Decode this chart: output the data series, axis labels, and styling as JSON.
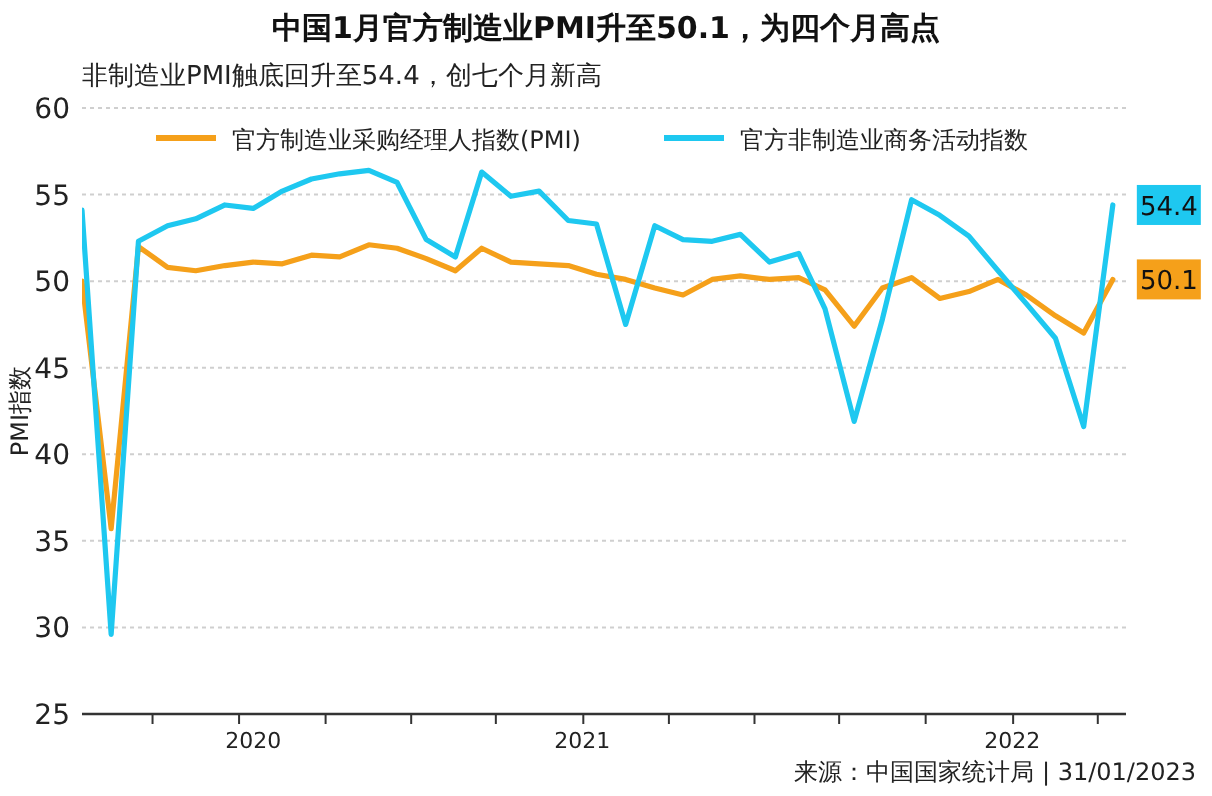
{
  "chart_data": {
    "type": "line",
    "title": "中国1月官方制造业PMI升至50.1，为四个月高点",
    "subtitle": "非制造业PMI触底回升至54.4，创七个月新高",
    "ylabel": "PMI指数",
    "annotations": [
      "来源：中国国家统计局 | 31/01/2023"
    ],
    "x": [
      "2020-01",
      "2020-02",
      "2020-03",
      "2020-04",
      "2020-05",
      "2020-06",
      "2020-07",
      "2020-08",
      "2020-09",
      "2020-10",
      "2020-11",
      "2020-12",
      "2021-01",
      "2021-02",
      "2021-03",
      "2021-04",
      "2021-05",
      "2021-06",
      "2021-07",
      "2021-08",
      "2021-09",
      "2021-10",
      "2021-11",
      "2021-12",
      "2022-01",
      "2022-02",
      "2022-03",
      "2022-04",
      "2022-05",
      "2022-06",
      "2022-07",
      "2022-08",
      "2022-09",
      "2022-10",
      "2022-11",
      "2022-12",
      "2023-01"
    ],
    "series": [
      {
        "name": "官方制造业采购经理人指数(PMI)",
        "color": "#f5a01a",
        "values": [
          50.0,
          35.7,
          52.0,
          50.8,
          50.6,
          50.9,
          51.1,
          51.0,
          51.5,
          51.4,
          52.1,
          51.9,
          51.3,
          50.6,
          51.9,
          51.1,
          51.0,
          50.9,
          50.4,
          50.1,
          49.6,
          49.2,
          50.1,
          50.3,
          50.1,
          50.2,
          49.5,
          47.4,
          49.6,
          50.2,
          49.0,
          49.4,
          50.1,
          49.2,
          48.0,
          47.0,
          50.1
        ],
        "value_labels": [
          null,
          null,
          null,
          null,
          null,
          null,
          null,
          null,
          null,
          null,
          null,
          null,
          null,
          null,
          null,
          null,
          null,
          null,
          null,
          null,
          null,
          null,
          null,
          null,
          null,
          null,
          null,
          null,
          null,
          null,
          null,
          null,
          null,
          null,
          null,
          null,
          "50.1"
        ]
      },
      {
        "name": "官方非制造业商务活动指数",
        "color": "#1ec8f0",
        "values": [
          54.1,
          29.6,
          52.3,
          53.2,
          53.6,
          54.4,
          54.2,
          55.2,
          55.9,
          56.2,
          56.4,
          55.7,
          52.4,
          51.4,
          56.3,
          54.9,
          55.2,
          53.5,
          53.3,
          47.5,
          53.2,
          52.4,
          52.3,
          52.7,
          51.1,
          51.6,
          48.4,
          41.9,
          47.8,
          54.7,
          53.8,
          52.6,
          50.6,
          48.7,
          46.7,
          41.6,
          54.4
        ],
        "value_labels": [
          null,
          null,
          null,
          null,
          null,
          null,
          null,
          null,
          null,
          null,
          null,
          null,
          null,
          null,
          null,
          null,
          null,
          null,
          null,
          null,
          null,
          null,
          null,
          null,
          null,
          null,
          null,
          null,
          null,
          null,
          null,
          null,
          null,
          null,
          null,
          null,
          "54.4"
        ]
      }
    ],
    "xlim": [
      "2020-01-01",
      "2023-01-15"
    ],
    "xticks": [
      {
        "value": "2020-03-16",
        "label": null
      },
      {
        "value": "2020-06-16",
        "label": null
      },
      {
        "value": "2020-07-01",
        "label": "2020"
      },
      {
        "value": "2020-09-16",
        "label": null
      },
      {
        "value": "2020-12-16",
        "label": null
      },
      {
        "value": "2021-03-16",
        "label": null
      },
      {
        "value": "2021-06-16",
        "label": "2021"
      },
      {
        "value": "2021-06-17",
        "label": null
      },
      {
        "value": "2021-09-16",
        "label": null
      },
      {
        "value": "2021-12-16",
        "label": null
      },
      {
        "value": "2022-03-16",
        "label": null
      },
      {
        "value": "2022-06-16",
        "label": null
      },
      {
        "value": "2022-09-16",
        "label": "2022"
      },
      {
        "value": "2022-09-17",
        "label": null
      },
      {
        "value": "2022-12-16",
        "label": null
      }
    ],
    "ylim": [
      25,
      60
    ],
    "yticks": [
      25,
      30,
      35,
      40,
      45,
      50,
      55,
      60
    ],
    "grid": "y",
    "legend": "top",
    "marker": "none",
    "line_style": "solid"
  }
}
